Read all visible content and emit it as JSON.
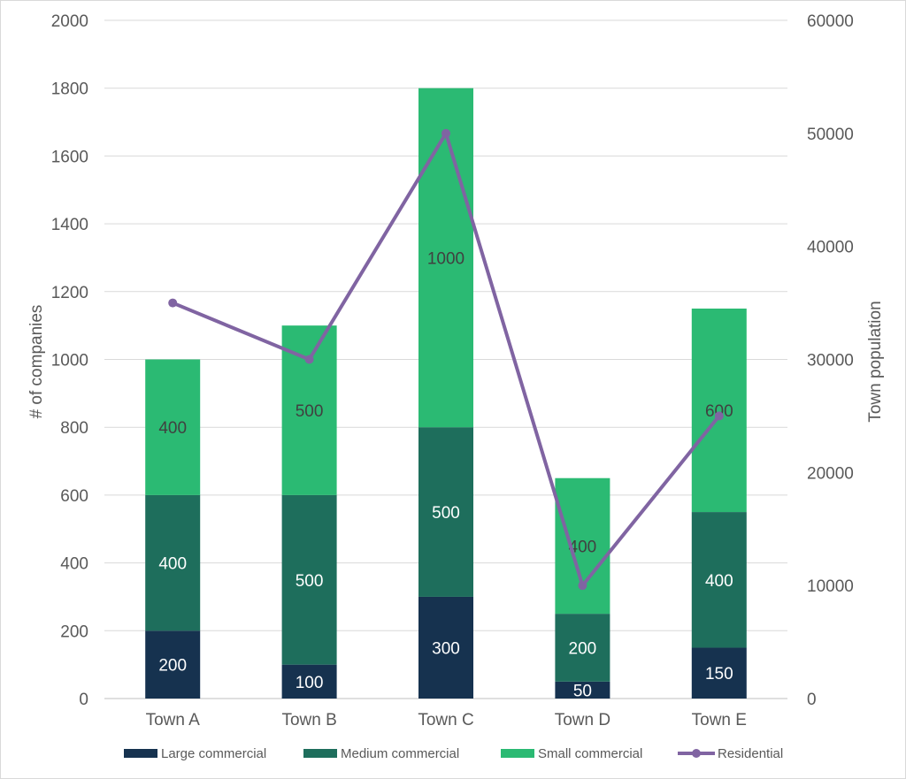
{
  "chart_data": {
    "type": "bar",
    "stacked": true,
    "categories": [
      "Town A",
      "Town B",
      "Town C",
      "Town D",
      "Town E"
    ],
    "series": [
      {
        "name": "Large commercial",
        "values": [
          200,
          100,
          300,
          50,
          150
        ],
        "color": "#16324f",
        "label_color": "#ffffff"
      },
      {
        "name": "Medium commercial",
        "values": [
          400,
          500,
          500,
          200,
          400
        ],
        "color": "#1e6e5c",
        "label_color": "#ffffff"
      },
      {
        "name": "Small commercial",
        "values": [
          400,
          500,
          1000,
          400,
          600
        ],
        "color": "#2bba73",
        "label_color": "#404040"
      }
    ],
    "line_series": {
      "name": "Residential",
      "axis": "secondary",
      "values": [
        35000,
        30000,
        50000,
        10000,
        25000
      ],
      "color": "#8064a2"
    },
    "ylabel": "# of companies",
    "y2label": "Town population",
    "ylim": [
      0,
      2000
    ],
    "y2lim": [
      0,
      60000
    ],
    "yticks": [
      "0",
      "200",
      "400",
      "600",
      "800",
      "1000",
      "1200",
      "1400",
      "1600",
      "1800",
      "2000"
    ],
    "y2ticks": [
      "0",
      "10000",
      "20000",
      "30000",
      "40000",
      "50000",
      "60000"
    ],
    "grid": true,
    "legend_position": "bottom"
  }
}
